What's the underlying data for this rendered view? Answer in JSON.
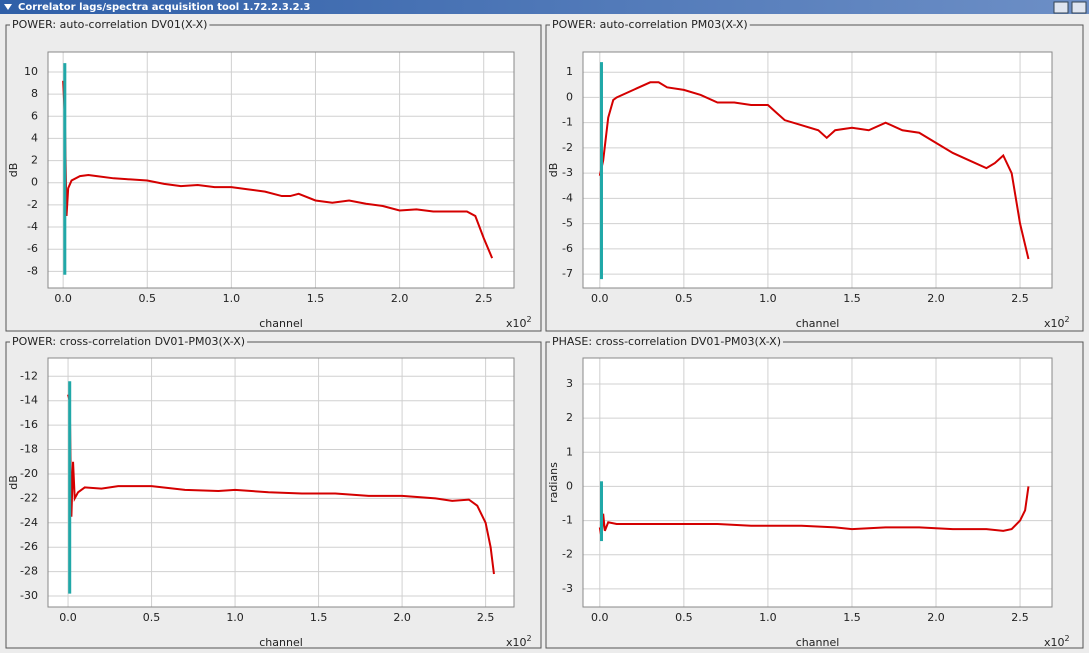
{
  "window": {
    "title": "Correlator lags/spectra acquisition tool 1.72.2.3.2.3"
  },
  "chart_data": [
    {
      "type": "line",
      "title": "POWER: auto-correlation DV01(X-X)",
      "x_label": "channel",
      "y_label": "dB",
      "x_multiplier": {
        "base": "x10",
        "exponent": "2"
      },
      "xlim": [
        -0.09,
        2.68
      ],
      "ylim": [
        -9.5,
        11.8
      ],
      "xticks": [
        {
          "value": 0,
          "label": "0.0"
        },
        {
          "value": 0.5,
          "label": "0.5"
        },
        {
          "value": 1.0,
          "label": "1.0"
        },
        {
          "value": 1.5,
          "label": "1.5"
        },
        {
          "value": 2.0,
          "label": "2.0"
        },
        {
          "value": 2.5,
          "label": "2.5"
        }
      ],
      "yticks": [
        10,
        8,
        6,
        4,
        2,
        0,
        -2,
        -4,
        -6,
        -8
      ],
      "grid": true,
      "series": [
        {
          "color": "#d40000",
          "x": [
            0.0,
            0.01,
            0.02,
            0.03,
            0.05,
            0.1,
            0.15,
            0.2,
            0.3,
            0.4,
            0.5,
            0.6,
            0.7,
            0.8,
            0.9,
            1.0,
            1.1,
            1.2,
            1.3,
            1.35,
            1.4,
            1.5,
            1.6,
            1.7,
            1.8,
            1.9,
            2.0,
            2.1,
            2.2,
            2.3,
            2.4,
            2.45,
            2.5,
            2.55
          ],
          "values": [
            9.2,
            6,
            -3,
            -0.5,
            0.2,
            0.6,
            0.7,
            0.6,
            0.4,
            0.3,
            0.2,
            -0.1,
            -0.3,
            -0.2,
            -0.4,
            -0.4,
            -0.6,
            -0.8,
            -1.2,
            -1.2,
            -1.0,
            -1.6,
            -1.8,
            -1.6,
            -1.9,
            -2.1,
            -2.5,
            -2.4,
            -2.6,
            -2.6,
            -2.6,
            -3.0,
            -5.0,
            -6.8
          ]
        },
        {
          "color": "#20a8a8",
          "x": [
            0.01,
            0.01
          ],
          "values": [
            10.8,
            -8.3
          ]
        }
      ]
    },
    {
      "type": "line",
      "title": "POWER: auto-correlation PM03(X-X)",
      "x_label": "channel",
      "y_label": "dB",
      "x_multiplier": {
        "base": "x10",
        "exponent": "2"
      },
      "xlim": [
        -0.1,
        2.69
      ],
      "ylim": [
        -7.55,
        1.8
      ],
      "xticks": [
        {
          "value": 0,
          "label": "0.0"
        },
        {
          "value": 0.5,
          "label": "0.5"
        },
        {
          "value": 1.0,
          "label": "1.0"
        },
        {
          "value": 1.5,
          "label": "1.5"
        },
        {
          "value": 2.0,
          "label": "2.0"
        },
        {
          "value": 2.5,
          "label": "2.5"
        }
      ],
      "yticks": [
        1,
        0,
        -1,
        -2,
        -3,
        -4,
        -5,
        -6,
        -7
      ],
      "grid": true,
      "series": [
        {
          "color": "#d40000",
          "x": [
            0.0,
            0.02,
            0.05,
            0.08,
            0.1,
            0.2,
            0.3,
            0.35,
            0.4,
            0.5,
            0.6,
            0.7,
            0.8,
            0.9,
            1.0,
            1.05,
            1.1,
            1.2,
            1.3,
            1.35,
            1.4,
            1.5,
            1.6,
            1.7,
            1.8,
            1.9,
            2.0,
            2.1,
            2.2,
            2.3,
            2.35,
            2.4,
            2.45,
            2.5,
            2.55
          ],
          "values": [
            -3.1,
            -2.5,
            -0.8,
            -0.1,
            0.0,
            0.3,
            0.6,
            0.6,
            0.4,
            0.3,
            0.1,
            -0.2,
            -0.2,
            -0.3,
            -0.3,
            -0.6,
            -0.9,
            -1.1,
            -1.3,
            -1.6,
            -1.3,
            -1.2,
            -1.3,
            -1.0,
            -1.3,
            -1.4,
            -1.8,
            -2.2,
            -2.5,
            -2.8,
            -2.6,
            -2.3,
            -3.0,
            -5.0,
            -6.4
          ]
        },
        {
          "color": "#20a8a8",
          "x": [
            0.01,
            0.01
          ],
          "values": [
            1.4,
            -7.2
          ]
        }
      ]
    },
    {
      "type": "line",
      "title": "POWER: cross-correlation DV01-PM03(X-X)",
      "x_label": "channel",
      "y_label": "dB",
      "x_multiplier": {
        "base": "x10",
        "exponent": "2"
      },
      "xlim": [
        -0.12,
        2.67
      ],
      "ylim": [
        -30.9,
        -10.5
      ],
      "xticks": [
        {
          "value": 0,
          "label": "0.0"
        },
        {
          "value": 0.5,
          "label": "0.5"
        },
        {
          "value": 1.0,
          "label": "1.0"
        },
        {
          "value": 1.5,
          "label": "1.5"
        },
        {
          "value": 2.0,
          "label": "2.0"
        },
        {
          "value": 2.5,
          "label": "2.5"
        }
      ],
      "yticks": [
        -12,
        -14,
        -16,
        -18,
        -20,
        -22,
        -24,
        -26,
        -28,
        -30
      ],
      "grid": true,
      "series": [
        {
          "color": "#d40000",
          "x": [
            0.0,
            0.01,
            0.02,
            0.03,
            0.04,
            0.06,
            0.1,
            0.2,
            0.3,
            0.5,
            0.7,
            0.9,
            1.0,
            1.2,
            1.4,
            1.6,
            1.8,
            2.0,
            2.2,
            2.3,
            2.4,
            2.45,
            2.5,
            2.53,
            2.55
          ],
          "values": [
            -13.5,
            -14,
            -23.5,
            -19,
            -22,
            -21.5,
            -21.1,
            -21.2,
            -21.0,
            -21.0,
            -21.3,
            -21.4,
            -21.3,
            -21.5,
            -21.6,
            -21.6,
            -21.8,
            -21.8,
            -22.0,
            -22.2,
            -22.1,
            -22.6,
            -24.0,
            -26,
            -28.2
          ]
        },
        {
          "color": "#20a8a8",
          "x": [
            0.01,
            0.01
          ],
          "values": [
            -12.4,
            -29.8
          ]
        }
      ]
    },
    {
      "type": "line",
      "title": "PHASE: cross-correlation DV01-PM03(X-X)",
      "x_label": "channel",
      "y_label": "radians",
      "x_multiplier": {
        "base": "x10",
        "exponent": "2"
      },
      "xlim": [
        -0.1,
        2.69
      ],
      "ylim": [
        -3.53,
        3.76
      ],
      "xticks": [
        {
          "value": 0,
          "label": "0.0"
        },
        {
          "value": 0.5,
          "label": "0.5"
        },
        {
          "value": 1.0,
          "label": "1.0"
        },
        {
          "value": 1.5,
          "label": "1.5"
        },
        {
          "value": 2.0,
          "label": "2.0"
        },
        {
          "value": 2.5,
          "label": "2.5"
        }
      ],
      "yticks": [
        3,
        2,
        1,
        0,
        -1,
        -2,
        -3
      ],
      "grid": true,
      "series": [
        {
          "color": "#d40000",
          "x": [
            0.0,
            0.01,
            0.02,
            0.03,
            0.05,
            0.1,
            0.3,
            0.5,
            0.7,
            0.9,
            1.0,
            1.2,
            1.4,
            1.5,
            1.7,
            1.9,
            2.1,
            2.3,
            2.4,
            2.45,
            2.5,
            2.53,
            2.55
          ],
          "values": [
            -1.2,
            -1.5,
            -0.8,
            -1.3,
            -1.05,
            -1.1,
            -1.1,
            -1.1,
            -1.1,
            -1.15,
            -1.15,
            -1.15,
            -1.2,
            -1.25,
            -1.2,
            -1.2,
            -1.25,
            -1.25,
            -1.3,
            -1.25,
            -1.0,
            -0.7,
            0.0
          ]
        },
        {
          "color": "#20a8a8",
          "x": [
            0.01,
            0.01
          ],
          "values": [
            0.15,
            -1.6
          ]
        }
      ]
    }
  ]
}
